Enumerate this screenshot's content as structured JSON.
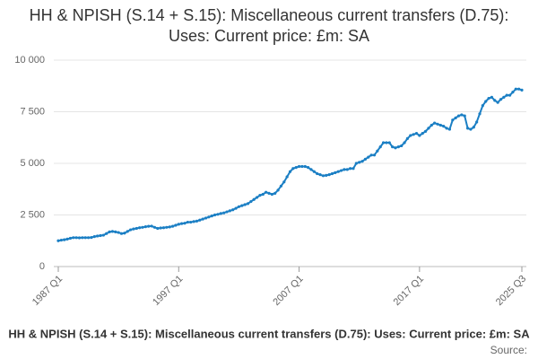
{
  "chart_data": {
    "type": "line",
    "title": "HH & NPISH (S.14 + S.15): Miscellaneous current transfers (D.75): Uses: Current price: £m: SA",
    "source": "Source:",
    "categories": [
      "1987 Q1",
      null,
      null,
      null,
      null,
      null,
      null,
      null,
      null,
      null,
      null,
      null,
      null,
      null,
      null,
      null,
      null,
      null,
      null,
      null,
      null,
      null,
      null,
      null,
      null,
      null,
      null,
      null,
      null,
      null,
      null,
      null,
      null,
      null,
      null,
      null,
      null,
      null,
      null,
      null,
      "1997 Q1",
      null,
      null,
      null,
      null,
      null,
      null,
      null,
      null,
      null,
      null,
      null,
      null,
      null,
      null,
      null,
      null,
      null,
      null,
      null,
      null,
      null,
      null,
      null,
      null,
      null,
      null,
      null,
      null,
      null,
      null,
      null,
      null,
      null,
      null,
      null,
      null,
      null,
      null,
      null,
      "2007 Q1",
      null,
      null,
      null,
      null,
      null,
      null,
      null,
      null,
      null,
      null,
      null,
      null,
      null,
      null,
      null,
      null,
      null,
      null,
      null,
      null,
      null,
      null,
      null,
      null,
      null,
      null,
      null,
      null,
      null,
      null,
      null,
      null,
      null,
      null,
      null,
      null,
      null,
      null,
      null,
      "2017 Q1",
      null,
      null,
      null,
      null,
      null,
      null,
      null,
      null,
      null,
      null,
      null,
      null,
      null,
      null,
      null,
      null,
      null,
      null,
      null,
      null,
      null,
      null,
      null,
      null,
      null,
      null,
      null,
      null,
      null,
      null,
      null,
      null,
      null,
      "2025 Q3"
    ],
    "series": [
      {
        "name": "HH & NPISH (S.14 + S.15): Miscellaneous current transfers (D.75): Uses: Current price: £m: SA",
        "color": "#1b7fc4",
        "values": [
          1250,
          1280,
          1300,
          1330,
          1370,
          1400,
          1400,
          1390,
          1400,
          1400,
          1400,
          1410,
          1450,
          1480,
          1500,
          1520,
          1600,
          1680,
          1700,
          1680,
          1650,
          1600,
          1620,
          1700,
          1780,
          1820,
          1850,
          1880,
          1900,
          1930,
          1950,
          1960,
          1900,
          1850,
          1870,
          1880,
          1900,
          1920,
          1950,
          2000,
          2050,
          2080,
          2100,
          2150,
          2150,
          2180,
          2200,
          2250,
          2300,
          2350,
          2400,
          2450,
          2500,
          2530,
          2570,
          2600,
          2650,
          2700,
          2750,
          2820,
          2900,
          2950,
          3000,
          3050,
          3150,
          3250,
          3350,
          3450,
          3500,
          3600,
          3550,
          3500,
          3550,
          3700,
          3900,
          4100,
          4350,
          4600,
          4750,
          4800,
          4850,
          4850,
          4850,
          4800,
          4700,
          4600,
          4500,
          4450,
          4400,
          4420,
          4450,
          4500,
          4550,
          4600,
          4650,
          4700,
          4700,
          4750,
          4750,
          5000,
          5050,
          5100,
          5200,
          5300,
          5400,
          5400,
          5600,
          5800,
          6000,
          6000,
          6000,
          5800,
          5750,
          5800,
          5850,
          6000,
          6200,
          6350,
          6400,
          6450,
          6350,
          6450,
          6550,
          6700,
          6850,
          6950,
          6900,
          6850,
          6800,
          6700,
          6650,
          7100,
          7200,
          7300,
          7350,
          7300,
          6700,
          6650,
          6750,
          7000,
          7400,
          7800,
          8000,
          8150,
          8200,
          8050,
          7950,
          8100,
          8200,
          8300,
          8300,
          8450,
          8600,
          8600,
          8550
        ]
      }
    ],
    "ylim": [
      0,
      10000
    ],
    "yticks": [
      0,
      {
        "value": 2500,
        "label": "2 500"
      },
      {
        "value": 5000,
        "label": "5 000"
      },
      {
        "value": 7500,
        "label": "7 500"
      },
      {
        "value": 10000,
        "label": "10 000"
      }
    ],
    "grid": true
  }
}
